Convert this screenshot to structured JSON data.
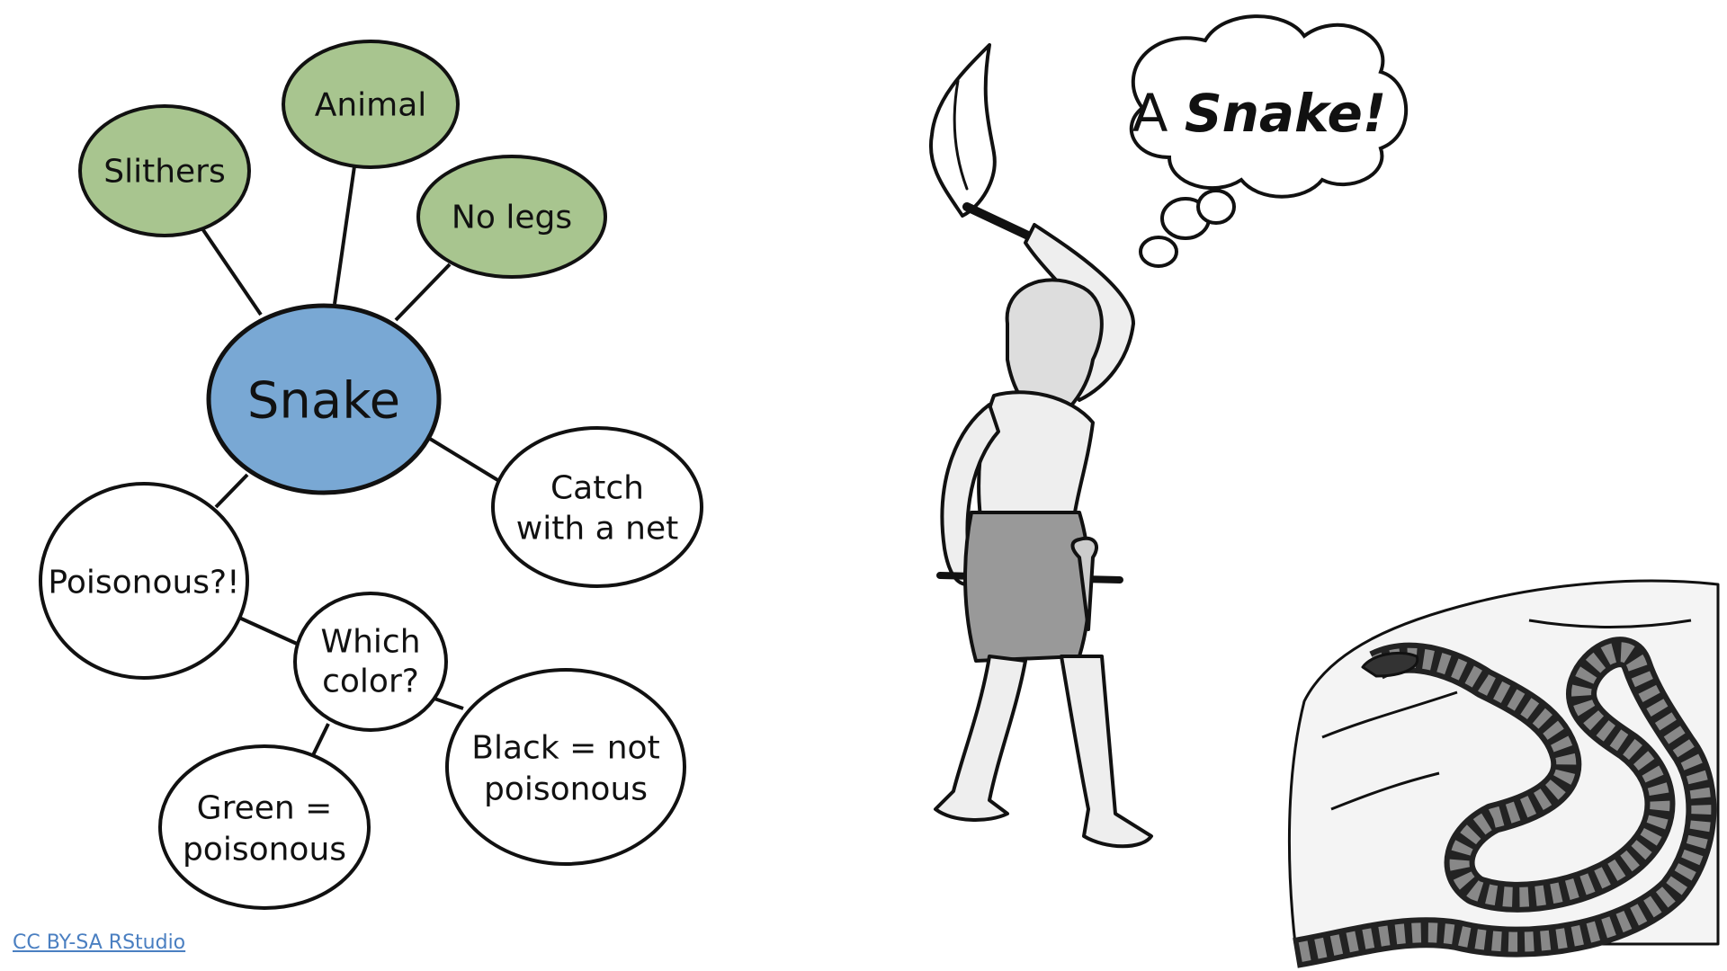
{
  "colors": {
    "central_fill": "#79a8d4",
    "attribute_fill": "#a8c58f",
    "plain_fill": "#ffffff",
    "stroke": "#111111",
    "link": "#4a7fc1"
  },
  "mindmap": {
    "center": {
      "label": "Snake"
    },
    "attributes": [
      {
        "id": "slithers",
        "label": "Slithers"
      },
      {
        "id": "animal",
        "label": "Animal"
      },
      {
        "id": "no-legs",
        "label": "No legs"
      }
    ],
    "catch": {
      "lines": [
        "Catch",
        "with a net"
      ]
    },
    "poisonous": {
      "label": "Poisonous?!"
    },
    "which_color": {
      "lines": [
        "Which",
        "color?"
      ]
    },
    "green": {
      "lines": [
        "Green =",
        "poisonous"
      ]
    },
    "black": {
      "lines": [
        "Black = not",
        "poisonous"
      ]
    }
  },
  "thought_bubble": {
    "prefix": "A ",
    "emphasis": "Snake!"
  },
  "illustrations": [
    {
      "name": "caveman-with-torch-illustration",
      "icon": "caveman-figure"
    },
    {
      "name": "snake-on-rock-illustration",
      "icon": "coiled-snake"
    }
  ],
  "footer": {
    "credit": "CC BY-SA RStudio"
  }
}
